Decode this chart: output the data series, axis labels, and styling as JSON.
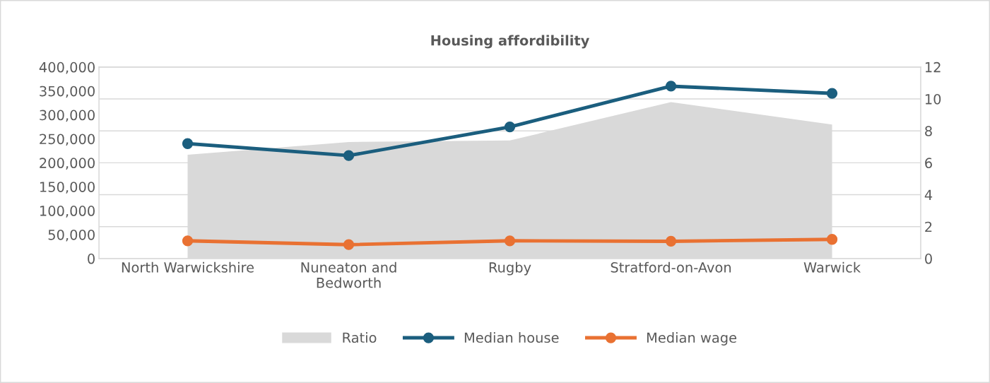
{
  "chart_data": {
    "type": "line",
    "title": "Housing affordibility",
    "categories": [
      "North Warwickshire",
      "Nuneaton and\nBedworth",
      "Rugby",
      "Stratford-on-Avon",
      "Warwick"
    ],
    "series": [
      {
        "name": "Ratio",
        "type": "area",
        "axis": "y2",
        "color": "#d9d9d9",
        "values": [
          6.5,
          7.3,
          7.4,
          9.8,
          8.4
        ]
      },
      {
        "name": "Median house",
        "marker": "circle",
        "color": "#1b5e7e",
        "values": [
          240000,
          215000,
          275000,
          360000,
          345000
        ]
      },
      {
        "name": "Median wage",
        "marker": "circle",
        "color": "#e97132",
        "values": [
          37000,
          29000,
          37000,
          36000,
          40000
        ]
      }
    ],
    "ylim": [
      0,
      400000
    ],
    "yticks": [
      0,
      {
        "value": 50000,
        "label": "50,000"
      },
      {
        "value": 100000,
        "label": "100,000"
      },
      {
        "value": 150000,
        "label": "150,000"
      },
      {
        "value": 200000,
        "label": "200,000"
      },
      {
        "value": 250000,
        "label": "250,000"
      },
      {
        "value": 300000,
        "label": "300,000"
      },
      {
        "value": 350000,
        "label": "350,000"
      },
      {
        "value": 400000,
        "label": "400,000"
      }
    ],
    "y2lim": [
      0,
      12
    ],
    "y2ticks": [
      0,
      2,
      4,
      6,
      8,
      10,
      12
    ],
    "grid": "y",
    "legend": "bottom",
    "line_style": "solid"
  }
}
